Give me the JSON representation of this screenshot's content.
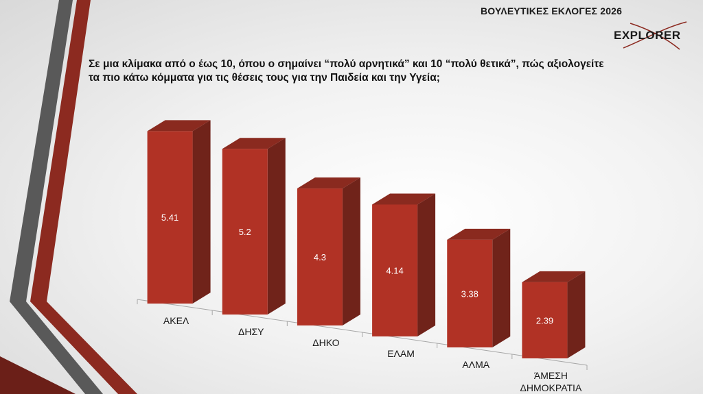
{
  "header": {
    "title": "ΒΟΥΛΕΥΤΙΚΕΣ ΕΚΛΟΓΕΣ 2026",
    "logo_text": "EXPLORER"
  },
  "question": {
    "line1": "Σε μια κλίμακα από ο έως 10, όπου ο σημαίνει “πολύ αρνητικά” και 10 “πολύ θετικά”, πώς αξιολογείτε",
    "line2": "τα πιο κάτω κόμματα για τις θέσεις τους για την Παιδεία και την Υγεία;"
  },
  "colors": {
    "bar_front": "#b13225",
    "bar_side": "#70231a",
    "bar_top": "#8a2a1f",
    "label": "#ffffff",
    "axis": "#a6a6a6"
  },
  "chart_data": {
    "type": "bar",
    "title": "",
    "xlabel": "",
    "ylabel": "",
    "categories": [
      "ΑΚΕΛ",
      "ΔΗΣΥ",
      "ΔΗΚΟ",
      "ΕΛΑΜ",
      "ΑΛΜΑ",
      "ΑΜΕΣΗ ΔΗΜΟΚΡΑΤΙΑ"
    ],
    "category_lines": [
      [
        "ΑΚΕΛ"
      ],
      [
        "ΔΗΣΥ"
      ],
      [
        "ΔΗΚΟ"
      ],
      [
        "ΕΛΑΜ"
      ],
      [
        "ΑΛΜΑ"
      ],
      [
        "ΆΜΕΣΗ",
        "ΔΗΜΟΚΡΑΤΙΑ"
      ]
    ],
    "values": [
      5.41,
      5.2,
      4.3,
      4.14,
      3.38,
      2.39
    ],
    "value_labels": [
      "5.41",
      "5.2",
      "4.3",
      "4.14",
      "3.38",
      "2.39"
    ],
    "ylim": [
      0,
      6.5
    ],
    "grid": false,
    "legend": "none"
  }
}
